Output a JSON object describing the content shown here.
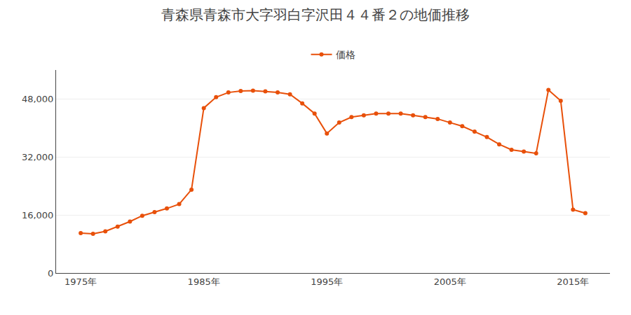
{
  "chart_data": {
    "type": "line",
    "title": "青森県青森市大字羽白字沢田４４番２の地価推移",
    "x": [
      1975,
      1976,
      1977,
      1978,
      1979,
      1980,
      1981,
      1982,
      1983,
      1984,
      1985,
      1986,
      1987,
      1988,
      1989,
      1990,
      1991,
      1992,
      1993,
      1994,
      1995,
      1996,
      1997,
      1998,
      1999,
      2000,
      2001,
      2002,
      2003,
      2004,
      2005,
      2006,
      2007,
      2008,
      2009,
      2010,
      2011,
      2012,
      2013,
      2014,
      2015,
      2016
    ],
    "series": [
      {
        "name": "価格",
        "color": "#e8500a",
        "values": [
          11000,
          10800,
          11500,
          12800,
          14200,
          15800,
          16800,
          17800,
          19000,
          23000,
          45500,
          48500,
          49800,
          50200,
          50300,
          50100,
          49800,
          49300,
          46800,
          44000,
          38500,
          41500,
          43000,
          43500,
          44000,
          44000,
          44000,
          43500,
          43000,
          42500,
          41500,
          40500,
          39000,
          37500,
          35500,
          34000,
          33500,
          33000,
          50500,
          47500,
          17500,
          16500
        ]
      }
    ],
    "xlim": [
      1973,
      2018
    ],
    "xticks": [
      {
        "value": 1975,
        "label": "1975年"
      },
      {
        "value": 1985,
        "label": "1985年"
      },
      {
        "value": 1995,
        "label": "1995年"
      },
      {
        "value": 2005,
        "label": "2005年"
      },
      {
        "value": 2015,
        "label": "2015年"
      }
    ],
    "ylim": [
      0,
      56000
    ],
    "yticks": [
      0,
      {
        "value": 16000,
        "label": "16,000"
      },
      {
        "value": 32000,
        "label": "32,000"
      },
      {
        "value": 48000,
        "label": "48,000"
      }
    ],
    "grid": "y",
    "legend": "top",
    "marker": "circle"
  }
}
